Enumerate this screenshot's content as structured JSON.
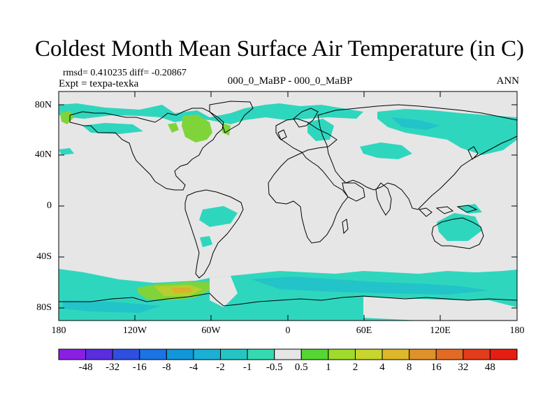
{
  "title": "Coldest Month Mean Surface Air Temperature (in C)",
  "stats_line": "rmsd= 0.410235 diff= -0.20867",
  "expt_line": "Expt = texpa-texka",
  "center_label": "000_0_MaBP - 000_0_MaBP",
  "season_label": "ANN",
  "lat_labels": [
    "80N",
    "40N",
    "0",
    "40S",
    "80S"
  ],
  "lon_labels": [
    "180",
    "120W",
    "60W",
    "0",
    "60E",
    "120E",
    "180"
  ],
  "colorbar": {
    "labels": [
      "-48",
      "-32",
      "-16",
      "-8",
      "-4",
      "-2",
      "-1",
      "-0.5",
      "0.5",
      "1",
      "2",
      "4",
      "8",
      "16",
      "32",
      "48"
    ],
    "colors": [
      "#8a1fe3",
      "#5a2de0",
      "#2f4fe0",
      "#1a74e3",
      "#1196d9",
      "#19b0d3",
      "#26c5c4",
      "#34dbb2",
      "#e6e6e6",
      "#55d633",
      "#9fdb2b",
      "#c7d52c",
      "#dcb82a",
      "#e0922a",
      "#e26a23",
      "#e23c1c",
      "#e61d12"
    ]
  },
  "colors": {
    "ocean": "#e6e6e6",
    "coast": "#000000",
    "anom_teal": "#2fd6be",
    "anom_cyan": "#22c3c9",
    "anom_green": "#7fd43a",
    "anom_yellow": "#b5cf2f",
    "anom_orange": "#d6b42b"
  }
}
